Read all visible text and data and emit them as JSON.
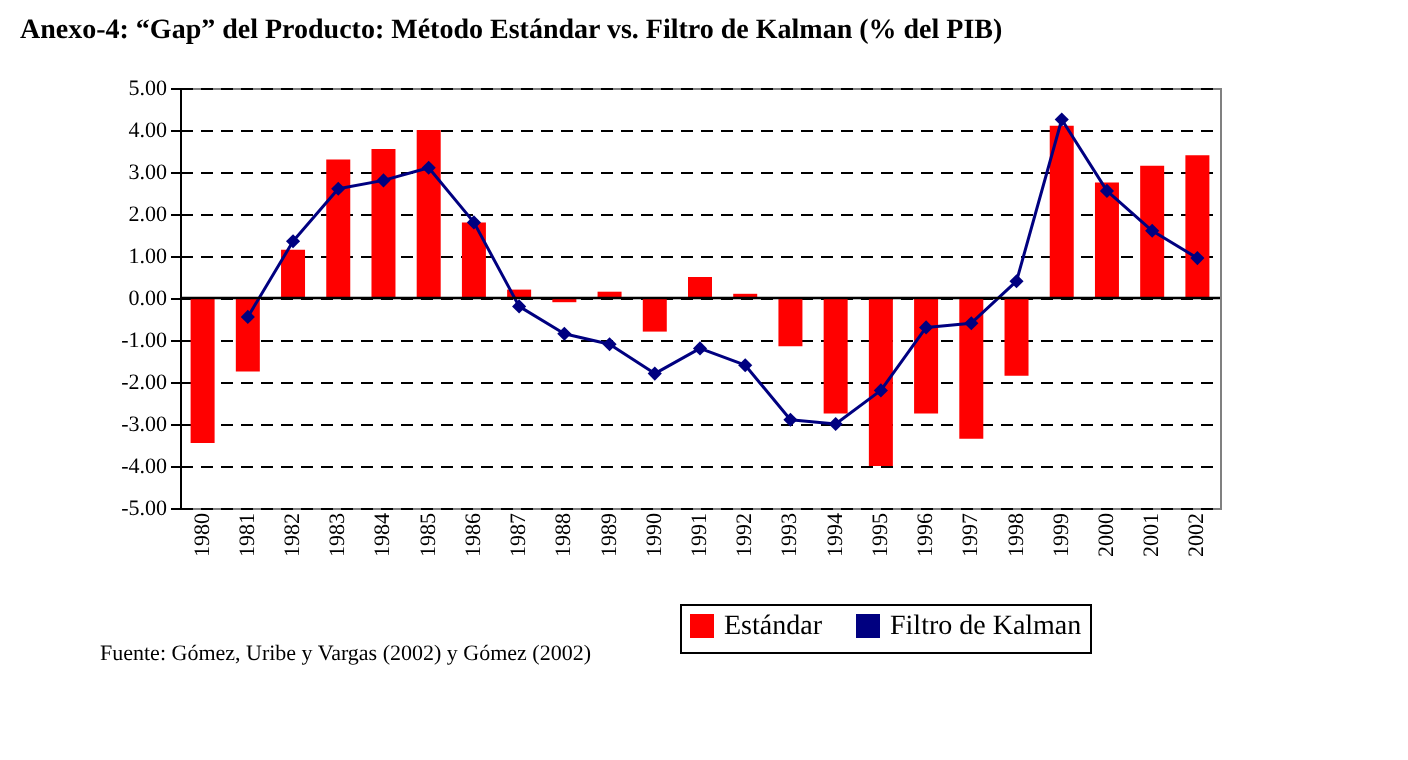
{
  "chart_data": {
    "type": "bar",
    "title": "Anexo-4: “Gap” del Producto: Método Estándar vs. Filtro de Kalman (% del PIB)",
    "categories": [
      "1980",
      "1981",
      "1982",
      "1983",
      "1984",
      "1985",
      "1986",
      "1987",
      "1988",
      "1989",
      "1990",
      "1991",
      "1992",
      "1993",
      "1994",
      "1995",
      "1996",
      "1997",
      "1998",
      "1999",
      "2000",
      "2001",
      "2002"
    ],
    "series": [
      {
        "name": "Estándar",
        "color": "#ff0000",
        "values": [
          -3.45,
          -1.75,
          1.15,
          3.3,
          3.55,
          4.0,
          1.8,
          0.2,
          -0.1,
          0.15,
          -0.8,
          0.5,
          0.1,
          -1.15,
          -2.75,
          -4.0,
          -2.75,
          -3.35,
          -1.85,
          4.1,
          2.75,
          3.15,
          3.4
        ]
      },
      {
        "name": "Filtro de Kalman",
        "type": "line",
        "color": "#000080",
        "marker": "diamond",
        "values": [
          null,
          -0.45,
          1.35,
          2.6,
          2.8,
          3.1,
          1.8,
          -0.2,
          -0.85,
          -1.1,
          -1.8,
          -1.2,
          -1.6,
          -2.9,
          -3.0,
          -2.2,
          -0.7,
          -0.6,
          0.4,
          4.25,
          2.55,
          1.6,
          0.95
        ]
      }
    ],
    "ylim": [
      -5,
      5
    ],
    "yticks": [
      {
        "value": -5,
        "label": "-5.00"
      },
      {
        "value": -4,
        "label": "-4.00"
      },
      {
        "value": -3,
        "label": "-3.00"
      },
      {
        "value": -2,
        "label": "-2.00"
      },
      {
        "value": -1,
        "label": "-1.00"
      },
      {
        "value": 0,
        "label": "0.00"
      },
      {
        "value": 1,
        "label": "1.00"
      },
      {
        "value": 2,
        "label": "2.00"
      },
      {
        "value": 3,
        "label": "3.00"
      },
      {
        "value": 4,
        "label": "4.00"
      },
      {
        "value": 5,
        "label": "5.00"
      }
    ],
    "grid": "y",
    "line_style": "solid",
    "legend": "bottom right",
    "ref_lines": [
      {
        "axis": "y",
        "value": 0,
        "color": "#000000"
      }
    ],
    "annotations": [
      "Fuente: Gómez, Uribe y Vargas (2002) y Gómez (2002)"
    ]
  }
}
